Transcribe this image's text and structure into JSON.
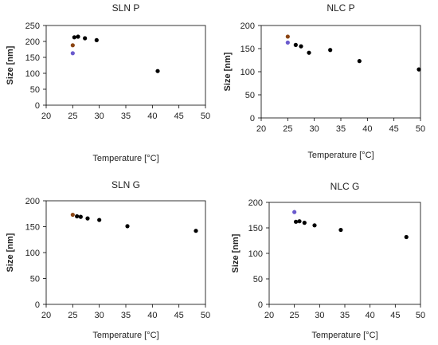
{
  "chart_data": [
    {
      "type": "scatter",
      "title": "SLN P",
      "xlabel": "Temperature [°C]",
      "ylabel": "Size [nm]",
      "xlim": [
        20,
        50
      ],
      "ylim": [
        0,
        250
      ],
      "xticks": [
        20,
        25,
        30,
        35,
        40,
        45,
        50
      ],
      "yticks": [
        0,
        50,
        100,
        150,
        200,
        250
      ],
      "points": [
        {
          "x": 25,
          "y": 163,
          "color": "#6a5acd"
        },
        {
          "x": 25,
          "y": 188,
          "color": "#8b4513"
        },
        {
          "x": 25.3,
          "y": 213,
          "color": "#000000"
        },
        {
          "x": 26,
          "y": 215,
          "color": "#000000"
        },
        {
          "x": 27.3,
          "y": 210,
          "color": "#000000"
        },
        {
          "x": 29.5,
          "y": 204,
          "color": "#000000"
        },
        {
          "x": 41,
          "y": 107,
          "color": "#000000"
        }
      ]
    },
    {
      "type": "scatter",
      "title": "NLC P",
      "xlabel": "Temperature [°C]",
      "ylabel": "Size [nm]",
      "xlim": [
        20,
        50
      ],
      "ylim": [
        0,
        200
      ],
      "xticks": [
        20,
        25,
        30,
        35,
        40,
        45,
        50
      ],
      "yticks": [
        0,
        50,
        100,
        150,
        200
      ],
      "points": [
        {
          "x": 25,
          "y": 176,
          "color": "#8b4513"
        },
        {
          "x": 25,
          "y": 163,
          "color": "#6a5acd"
        },
        {
          "x": 26.5,
          "y": 158,
          "color": "#000000"
        },
        {
          "x": 27.5,
          "y": 155,
          "color": "#000000"
        },
        {
          "x": 29,
          "y": 141,
          "color": "#000000"
        },
        {
          "x": 33,
          "y": 147,
          "color": "#000000"
        },
        {
          "x": 38.5,
          "y": 123,
          "color": "#000000"
        },
        {
          "x": 49.7,
          "y": 105,
          "color": "#000000"
        }
      ]
    },
    {
      "type": "scatter",
      "title": "SLN G",
      "xlabel": "Temperature [°C]",
      "ylabel": "Size [nm]",
      "xlim": [
        20,
        50
      ],
      "ylim": [
        0,
        200
      ],
      "xticks": [
        20,
        25,
        30,
        35,
        40,
        45,
        50
      ],
      "yticks": [
        0,
        50,
        100,
        150,
        200
      ],
      "points": [
        {
          "x": 25,
          "y": 173,
          "color": "#8b4513"
        },
        {
          "x": 25.8,
          "y": 170,
          "color": "#000000"
        },
        {
          "x": 26.5,
          "y": 169,
          "color": "#000000"
        },
        {
          "x": 27.8,
          "y": 166,
          "color": "#000000"
        },
        {
          "x": 30,
          "y": 163,
          "color": "#000000"
        },
        {
          "x": 35.3,
          "y": 151,
          "color": "#000000"
        },
        {
          "x": 48.2,
          "y": 142,
          "color": "#000000"
        }
      ]
    },
    {
      "type": "scatter",
      "title": "NLC G",
      "xlabel": "Temperature [°C]",
      "ylabel": "Size [nm]",
      "xlim": [
        20,
        50
      ],
      "ylim": [
        0,
        200
      ],
      "xticks": [
        20,
        25,
        30,
        35,
        40,
        45,
        50
      ],
      "yticks": [
        0,
        50,
        100,
        150,
        200
      ],
      "points": [
        {
          "x": 25,
          "y": 181,
          "color": "#6a5acd"
        },
        {
          "x": 25.3,
          "y": 162,
          "color": "#000000"
        },
        {
          "x": 26,
          "y": 163,
          "color": "#000000"
        },
        {
          "x": 27,
          "y": 160,
          "color": "#000000"
        },
        {
          "x": 29,
          "y": 155,
          "color": "#000000"
        },
        {
          "x": 34.2,
          "y": 146,
          "color": "#000000"
        },
        {
          "x": 47.2,
          "y": 132,
          "color": "#000000"
        }
      ]
    }
  ]
}
